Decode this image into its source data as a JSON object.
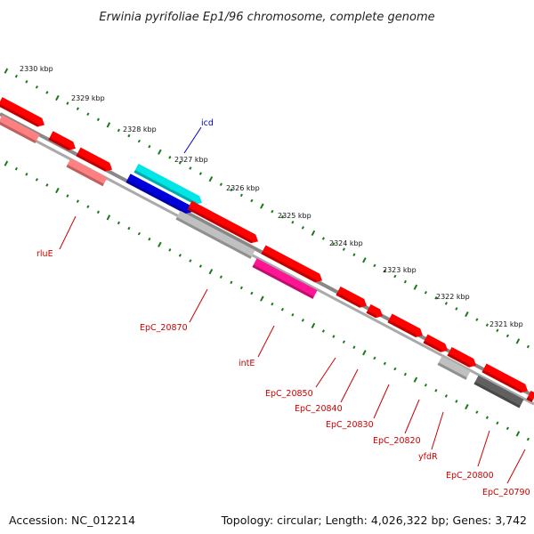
{
  "title": "Erwinia pyrifoliae Ep1/96 chromosome, complete genome",
  "footer": {
    "accession": "Accession: NC_012214",
    "summary": "Topology: circular; Length: 4,026,322 bp; Genes: 3,742"
  },
  "colors": {
    "backbone": "#888888",
    "tick": "#1a7a1a",
    "forward_gene": "#ff0000",
    "reverse_gene": "#ff0000",
    "pseudo_gene": "#ff7b7b",
    "label_red": "#cc0000",
    "label_blue": "#0000cc"
  },
  "ticks": [
    "2330 kbp",
    "2329 kbp",
    "2328 kbp",
    "2327 kbp",
    "2326 kbp",
    "2325 kbp",
    "2324 kbp",
    "2323 kbp",
    "2322 kbp",
    "2321 kbp"
  ],
  "gene_labels": [
    {
      "name": "icd",
      "color": "blue"
    },
    {
      "name": "rluE",
      "color": "red"
    },
    {
      "name": "EpC_20870",
      "color": "red"
    },
    {
      "name": "intE",
      "color": "red"
    },
    {
      "name": "EpC_20850",
      "color": "red"
    },
    {
      "name": "EpC_20840",
      "color": "red"
    },
    {
      "name": "EpC_20830",
      "color": "red"
    },
    {
      "name": "EpC_20820",
      "color": "red"
    },
    {
      "name": "yfdR",
      "color": "red"
    },
    {
      "name": "EpC_20800",
      "color": "red"
    },
    {
      "name": "EpC_20790",
      "color": "red"
    }
  ]
}
